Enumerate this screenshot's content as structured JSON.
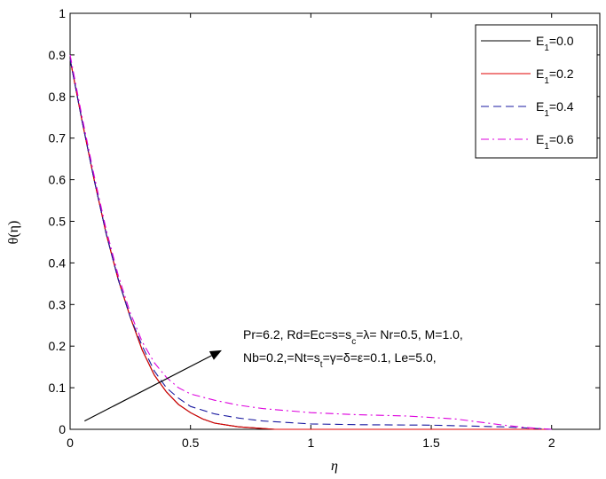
{
  "chart_data": {
    "type": "line",
    "xlabel": "η",
    "ylabel": "θ(η)",
    "xlim": [
      0,
      2.2
    ],
    "ylim": [
      0,
      1
    ],
    "x_ticks": [
      "0",
      "0.5",
      "1",
      "1.5",
      "2"
    ],
    "y_ticks": [
      "0",
      "0.1",
      "0.2",
      "0.3",
      "0.4",
      "0.5",
      "0.6",
      "0.7",
      "0.8",
      "0.9",
      "1"
    ],
    "legend_position": "top-right",
    "series": [
      {
        "name": "E1=0.0",
        "legend_main": "E",
        "legend_sub": "1",
        "legend_value": "=0.0",
        "color": "#000000",
        "dash": "solid",
        "x": [
          0,
          0.05,
          0.1,
          0.15,
          0.2,
          0.25,
          0.3,
          0.35,
          0.4,
          0.45,
          0.5,
          0.55,
          0.6,
          0.7,
          0.8,
          0.85,
          0.9,
          1.0,
          1.2,
          1.5,
          2.0
        ],
        "y": [
          0.89,
          0.74,
          0.6,
          0.47,
          0.36,
          0.27,
          0.19,
          0.13,
          0.09,
          0.06,
          0.04,
          0.025,
          0.015,
          0.006,
          0.002,
          0.0,
          0.0,
          0.0,
          0.0,
          0.0,
          0.0
        ]
      },
      {
        "name": "E1=0.2",
        "legend_main": "E",
        "legend_sub": "1",
        "legend_value": "=0.2",
        "color": "#e00000",
        "dash": "solid",
        "x": [
          0,
          0.05,
          0.1,
          0.15,
          0.2,
          0.25,
          0.3,
          0.35,
          0.4,
          0.45,
          0.5,
          0.55,
          0.6,
          0.7,
          0.8,
          0.85,
          0.9,
          1.0,
          1.2,
          1.5,
          2.0
        ],
        "y": [
          0.89,
          0.74,
          0.6,
          0.47,
          0.36,
          0.27,
          0.19,
          0.13,
          0.09,
          0.06,
          0.04,
          0.025,
          0.015,
          0.006,
          0.002,
          0.0,
          0.0,
          0.0,
          0.0,
          0.0,
          0.0
        ]
      },
      {
        "name": "E1=0.4",
        "legend_main": "E",
        "legend_sub": "1",
        "legend_value": "=0.4",
        "color": "#1a1aa0",
        "dash": "dashed",
        "x": [
          0,
          0.05,
          0.1,
          0.15,
          0.2,
          0.25,
          0.3,
          0.35,
          0.4,
          0.45,
          0.5,
          0.6,
          0.7,
          0.8,
          1.0,
          1.2,
          1.5,
          1.8,
          2.0
        ],
        "y": [
          0.89,
          0.74,
          0.6,
          0.47,
          0.36,
          0.27,
          0.2,
          0.14,
          0.1,
          0.075,
          0.055,
          0.037,
          0.027,
          0.02,
          0.013,
          0.011,
          0.01,
          0.006,
          0.0
        ]
      },
      {
        "name": "E1=0.6",
        "legend_main": "E",
        "legend_sub": "1",
        "legend_value": "=0.6",
        "color": "#dd00dd",
        "dash": "dashdot",
        "x": [
          0,
          0.05,
          0.1,
          0.15,
          0.2,
          0.25,
          0.3,
          0.35,
          0.4,
          0.45,
          0.5,
          0.6,
          0.7,
          0.8,
          0.9,
          1.0,
          1.2,
          1.4,
          1.6,
          1.8,
          1.9,
          2.0
        ],
        "y": [
          0.9,
          0.75,
          0.61,
          0.48,
          0.37,
          0.28,
          0.21,
          0.16,
          0.125,
          0.1,
          0.085,
          0.07,
          0.058,
          0.05,
          0.045,
          0.04,
          0.035,
          0.032,
          0.025,
          0.01,
          0.004,
          0.0
        ]
      }
    ],
    "annotation": {
      "line1": "Pr=6.2, Rd=Ec=s=s",
      "line1_sub": "c",
      "line1_rest": "=λ= Nr=0.5, M=1.0,",
      "line2": "Nb=0.2,=Nt=s",
      "line2_sub": "t",
      "line2_rest": "=γ=δ=ε=0.1, Le=5.0,",
      "arrow_from": [
        0.06,
        0.02
      ],
      "arrow_to": [
        0.63,
        0.19
      ]
    }
  }
}
